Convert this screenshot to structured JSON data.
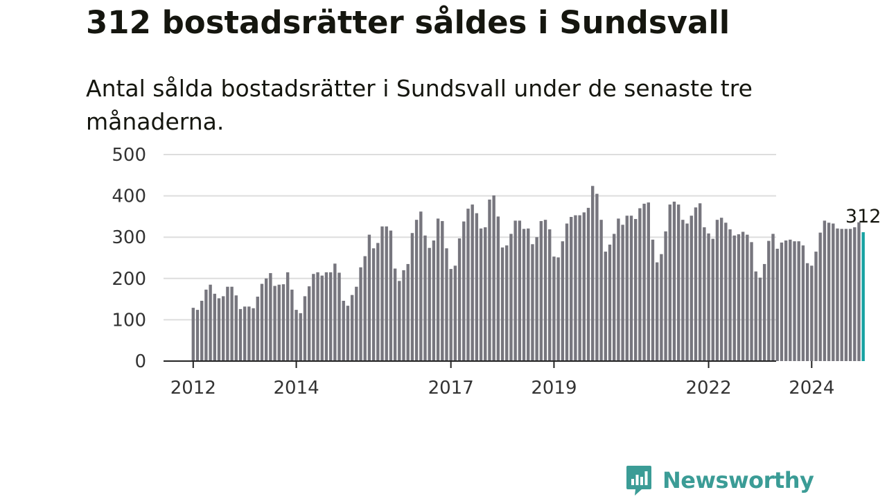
{
  "header": {
    "title": "312 bostadsrätter såldes i Sundsvall",
    "subtitle": "Antal sålda bostadsrätter i Sundsvall under de senaste tre månaderna."
  },
  "brand": {
    "name": "Newsworthy",
    "color": "#3b9c96"
  },
  "colors": {
    "bar": "#77767e",
    "highlight": "#17a2a2",
    "grid": "#dddddd",
    "axis": "#222222"
  },
  "chart_data": {
    "type": "bar",
    "title": "312 bostadsrätter såldes i Sundsvall",
    "subtitle": "Antal sålda bostadsrätter i Sundsvall under de senaste tre månaderna.",
    "xlabel": "",
    "ylabel": "",
    "ylim": [
      0,
      500
    ],
    "yticks": [
      0,
      100,
      200,
      300,
      400,
      500
    ],
    "xticks": [
      "2012",
      "2014",
      "2017",
      "2019",
      "2022",
      "2024"
    ],
    "grid": true,
    "annotation": {
      "text": "312",
      "target": "last bar"
    },
    "start": "2012-01",
    "end": "2024-12",
    "highlight_last": true,
    "values": [
      129,
      124,
      146,
      173,
      185,
      163,
      152,
      157,
      180,
      180,
      159,
      126,
      132,
      132,
      128,
      156,
      187,
      200,
      213,
      182,
      185,
      186,
      215,
      173,
      124,
      116,
      157,
      181,
      211,
      215,
      207,
      215,
      215,
      236,
      214,
      146,
      134,
      160,
      180,
      227,
      254,
      306,
      273,
      286,
      326,
      326,
      316,
      224,
      194,
      220,
      235,
      310,
      342,
      362,
      304,
      274,
      292,
      345,
      339,
      273,
      223,
      231,
      297,
      338,
      369,
      379,
      358,
      321,
      324,
      391,
      401,
      350,
      275,
      280,
      308,
      340,
      340,
      320,
      321,
      283,
      300,
      339,
      342,
      319,
      253,
      251,
      290,
      333,
      349,
      353,
      353,
      360,
      371,
      424,
      405,
      342,
      265,
      282,
      308,
      345,
      330,
      352,
      352,
      344,
      370,
      381,
      384,
      294,
      239,
      259,
      314,
      379,
      386,
      379,
      342,
      333,
      352,
      372,
      382,
      324,
      309,
      296,
      342,
      347,
      335,
      319,
      304,
      307,
      313,
      306,
      288,
      217,
      202,
      235,
      291,
      308,
      272,
      287,
      292,
      294,
      290,
      290,
      280,
      237,
      231,
      265,
      311,
      340,
      335,
      333,
      321,
      320,
      320,
      320,
      324,
      336,
      312
    ]
  }
}
